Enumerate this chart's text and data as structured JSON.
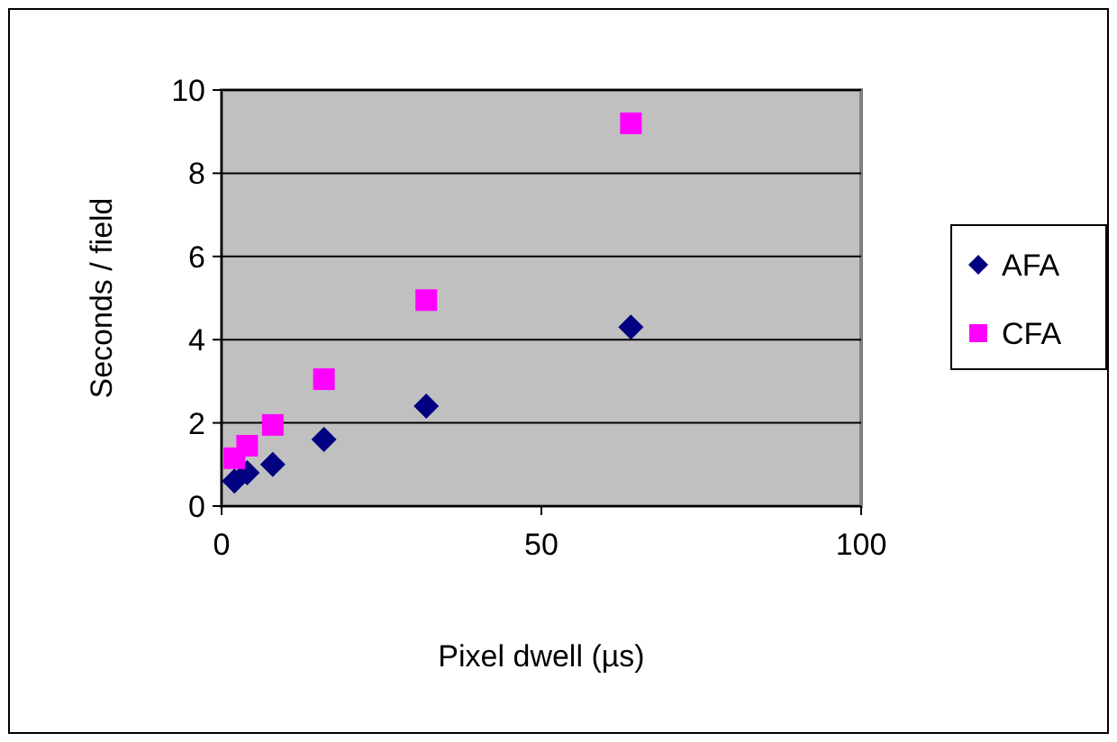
{
  "chart_data": {
    "type": "scatter",
    "xlabel": "Pixel dwell (µs)",
    "ylabel": "Seconds / field",
    "x": [
      2,
      4,
      8,
      16,
      32,
      64
    ],
    "series": [
      {
        "name": "AFA",
        "color": "#000080",
        "marker": "diamond",
        "values": [
          0.6,
          0.8,
          1.0,
          1.6,
          2.4,
          4.3
        ]
      },
      {
        "name": "CFA",
        "color": "#ff00ff",
        "marker": "square",
        "values": [
          1.15,
          1.45,
          1.95,
          3.05,
          4.95,
          9.2
        ]
      }
    ],
    "xlim": [
      0,
      100
    ],
    "xticks": [
      0,
      50,
      100
    ],
    "ylim": [
      0,
      10
    ],
    "yticks": [
      0,
      2,
      4,
      6,
      8,
      10
    ],
    "grid": "y",
    "legend": "right"
  }
}
